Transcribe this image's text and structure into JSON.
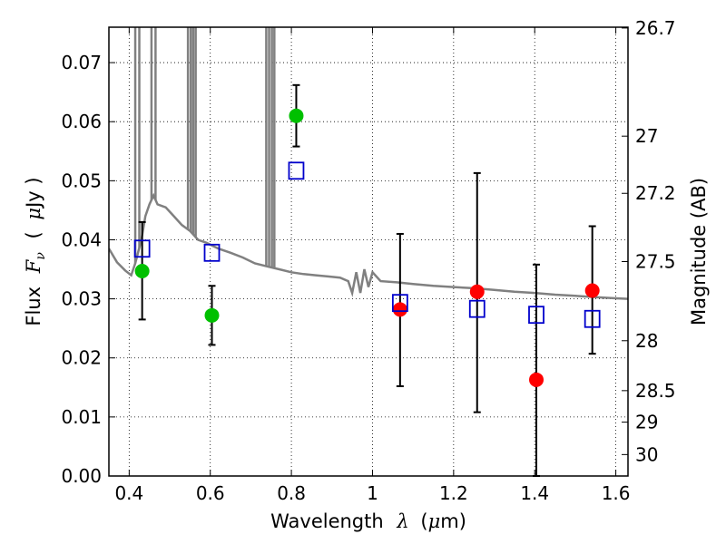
{
  "chart_data": {
    "type": "scatter",
    "title": "",
    "xlabel": "Wavelength",
    "xlabel_symbol": "λ",
    "xlabel_unit_open": "(",
    "xlabel_unit_mu": "μ",
    "xlabel_unit_rest": "m)",
    "ylabel": "Flux",
    "ylabel_symbol": "F",
    "ylabel_subscript": "ν",
    "ylabel_unit_open": "(",
    "ylabel_unit_mu": "μ",
    "ylabel_unit_rest": "Jy )",
    "y2label": "Magnitude (AB)",
    "xlim": [
      0.35,
      1.63
    ],
    "ylim": [
      0.0,
      0.076
    ],
    "grid": true,
    "x_ticks": [
      {
        "value": 0.4,
        "label": "0.4"
      },
      {
        "value": 0.6,
        "label": "0.6"
      },
      {
        "value": 0.8,
        "label": "0.8"
      },
      {
        "value": 1.0,
        "label": "1"
      },
      {
        "value": 1.2,
        "label": "1.2"
      },
      {
        "value": 1.4,
        "label": "1.4"
      },
      {
        "value": 1.6,
        "label": "1.6"
      }
    ],
    "y_ticks": [
      {
        "value": 0.0,
        "label": "0.00"
      },
      {
        "value": 0.01,
        "label": "0.01"
      },
      {
        "value": 0.02,
        "label": "0.02"
      },
      {
        "value": 0.03,
        "label": "0.03"
      },
      {
        "value": 0.04,
        "label": "0.04"
      },
      {
        "value": 0.05,
        "label": "0.05"
      },
      {
        "value": 0.06,
        "label": "0.06"
      },
      {
        "value": 0.07,
        "label": "0.07"
      }
    ],
    "y2_ticks": [
      {
        "mag": 26.7,
        "label": "26.7"
      },
      {
        "mag": 27.0,
        "label": "27"
      },
      {
        "mag": 27.2,
        "label": "27.2"
      },
      {
        "mag": 27.5,
        "label": "27.5"
      },
      {
        "mag": 28.0,
        "label": "28"
      },
      {
        "mag": 28.5,
        "label": "28.5"
      },
      {
        "mag": 29.0,
        "label": "29"
      },
      {
        "mag": 30.0,
        "label": "30"
      }
    ],
    "series": [
      {
        "kind": "line",
        "color": "#808080",
        "points": [
          [
            0.35,
            0.0385
          ],
          [
            0.37,
            0.0362
          ],
          [
            0.39,
            0.0348
          ],
          [
            0.405,
            0.034
          ],
          [
            0.415,
            0.036
          ],
          [
            0.43,
            0.04
          ],
          [
            0.44,
            0.044
          ],
          [
            0.45,
            0.046
          ],
          [
            0.46,
            0.0475
          ],
          [
            0.47,
            0.046
          ],
          [
            0.49,
            0.0455
          ],
          [
            0.51,
            0.044
          ],
          [
            0.53,
            0.0425
          ],
          [
            0.55,
            0.0415
          ],
          [
            0.57,
            0.04
          ],
          [
            0.59,
            0.0395
          ],
          [
            0.62,
            0.0385
          ],
          [
            0.65,
            0.0378
          ],
          [
            0.68,
            0.037
          ],
          [
            0.71,
            0.036
          ],
          [
            0.74,
            0.0355
          ],
          [
            0.77,
            0.035
          ],
          [
            0.8,
            0.0345
          ],
          [
            0.83,
            0.0342
          ],
          [
            0.86,
            0.034
          ],
          [
            0.89,
            0.0338
          ],
          [
            0.92,
            0.0336
          ],
          [
            0.94,
            0.033
          ],
          [
            0.95,
            0.031
          ],
          [
            0.96,
            0.0345
          ],
          [
            0.97,
            0.031
          ],
          [
            0.98,
            0.035
          ],
          [
            0.99,
            0.032
          ],
          [
            1.0,
            0.0345
          ],
          [
            1.02,
            0.033
          ],
          [
            1.06,
            0.0328
          ],
          [
            1.1,
            0.0325
          ],
          [
            1.15,
            0.0322
          ],
          [
            1.2,
            0.032
          ],
          [
            1.25,
            0.0318
          ],
          [
            1.3,
            0.0315
          ],
          [
            1.35,
            0.0312
          ],
          [
            1.4,
            0.031
          ],
          [
            1.45,
            0.0307
          ],
          [
            1.5,
            0.0305
          ],
          [
            1.55,
            0.0303
          ],
          [
            1.6,
            0.0301
          ],
          [
            1.63,
            0.03
          ]
        ],
        "spikes": [
          [
            0.415,
            0.076
          ],
          [
            0.425,
            0.076
          ],
          [
            0.455,
            0.076
          ],
          [
            0.465,
            0.076
          ],
          [
            0.545,
            0.076
          ],
          [
            0.552,
            0.076
          ],
          [
            0.558,
            0.076
          ],
          [
            0.564,
            0.076
          ],
          [
            0.738,
            0.076
          ],
          [
            0.745,
            0.076
          ],
          [
            0.752,
            0.076
          ],
          [
            0.758,
            0.076
          ]
        ]
      },
      {
        "kind": "points",
        "marker": "circle",
        "color": "#00c000",
        "points": [
          {
            "x": 0.432,
            "y": 0.0347,
            "yerr": [
              0.0265,
              0.043
            ]
          },
          {
            "x": 0.604,
            "y": 0.0272,
            "yerr": [
              0.0222,
              0.0322
            ]
          },
          {
            "x": 0.812,
            "y": 0.061,
            "yerr": [
              0.0558,
              0.0662
            ]
          }
        ]
      },
      {
        "kind": "points",
        "marker": "circle",
        "color": "#ff0000",
        "points": [
          {
            "x": 1.068,
            "y": 0.0282,
            "yerr": [
              0.0152,
              0.041
            ]
          },
          {
            "x": 1.258,
            "y": 0.0312,
            "yerr": [
              0.0108,
              0.0513
            ]
          },
          {
            "x": 1.404,
            "y": 0.0163,
            "yerr": [
              0.0,
              0.0358
            ]
          },
          {
            "x": 1.542,
            "y": 0.0314,
            "yerr": [
              0.0207,
              0.0423
            ]
          }
        ]
      },
      {
        "kind": "points",
        "marker": "square",
        "color": "#0000cc",
        "points": [
          {
            "x": 0.432,
            "y": 0.0385
          },
          {
            "x": 0.604,
            "y": 0.0378
          },
          {
            "x": 0.812,
            "y": 0.0517
          },
          {
            "x": 1.068,
            "y": 0.0293
          },
          {
            "x": 1.258,
            "y": 0.0283
          },
          {
            "x": 1.404,
            "y": 0.0273
          },
          {
            "x": 1.542,
            "y": 0.0266
          }
        ]
      }
    ]
  }
}
